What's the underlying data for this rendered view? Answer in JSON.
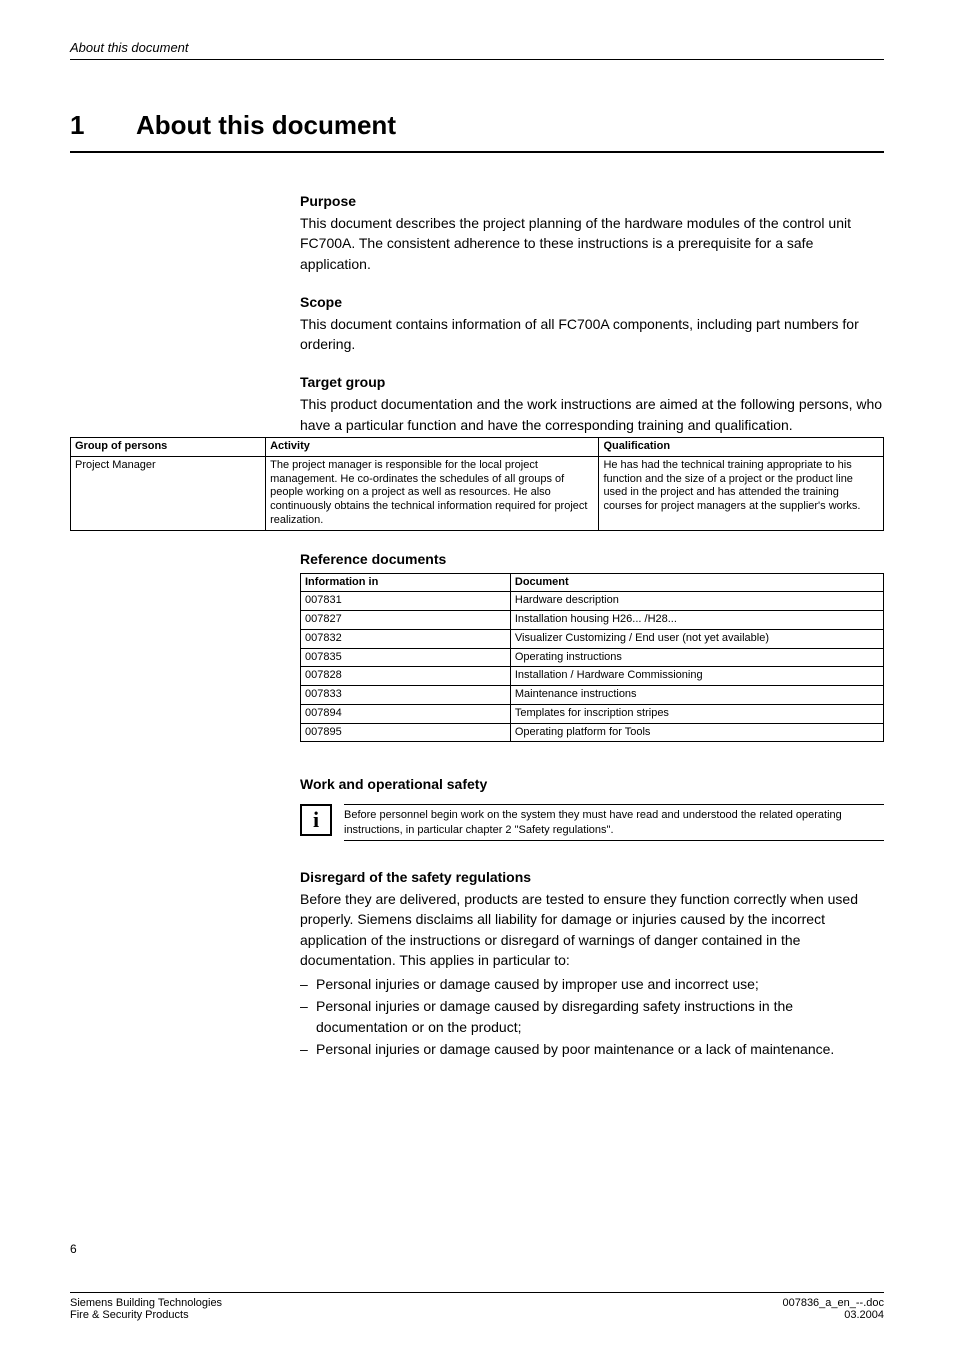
{
  "running_head": "About this document",
  "chapter": {
    "num": "1",
    "title": "About this document"
  },
  "sections": {
    "purpose": {
      "head": "Purpose",
      "body": "This document describes the project planning of the hardware modules of the control unit FC700A. The consistent adherence to these instructions is a prerequisite for a safe application."
    },
    "scope": {
      "head": "Scope",
      "body": "This document contains information of all FC700A components, including part numbers for ordering."
    },
    "target": {
      "head": "Target group",
      "body": "This product documentation and the work instructions are aimed at the following persons, who have a particular function and have the corresponding training and qualification."
    },
    "refdocs_head": "Reference documents",
    "work_safety_head": "Work and operational safety",
    "info_note": "Before personnel begin work on the system they must have read and understood the related operating instructions, in particular chapter 2  \"Safety regulations\".",
    "disregard": {
      "head": "Disregard of the safety regulations",
      "body": "Before they are delivered, products are tested to ensure they function correctly when used properly. Siemens disclaims all liability for damage or injuries caused by the incorrect application of the instructions or disregard of warnings of danger contained in the documentation. This applies in particular to:",
      "bullets": [
        "Personal injuries or damage caused by improper use and incorrect use;",
        "Personal injuries or damage caused by disregarding safety instructions in the documentation or on the product;",
        "Personal injuries or damage caused by poor maintenance or a lack of maintenance."
      ]
    }
  },
  "persons_table": {
    "headers": [
      "Group of persons",
      "Activity",
      "Qualification"
    ],
    "row": {
      "group": "Project Manager",
      "activity": "The project manager is responsible for the local project management. He co-ordinates the schedules of all groups of people working on a project as well as resources. He also continuously obtains the technical information required for project realization.",
      "qualification": "He has had the technical training appropriate to his function and the size of a project or the product line used in the project and has attended the training courses for project managers at the supplier's works."
    },
    "col_widths": [
      "24%",
      "41%",
      "35%"
    ]
  },
  "ref_table": {
    "headers": [
      "Information in",
      "Document"
    ],
    "rows": [
      [
        "007831",
        "Hardware description"
      ],
      [
        "007827",
        "Installation housing H26... /H28..."
      ],
      [
        "007832",
        "Visualizer Customizing / End user (not yet available)"
      ],
      [
        "007835",
        "Operating instructions"
      ],
      [
        "007828",
        "Installation / Hardware Commissioning"
      ],
      [
        "007833",
        "Maintenance instructions"
      ],
      [
        "007894",
        "Templates for inscription stripes"
      ],
      [
        "007895",
        "Operating platform for Tools"
      ]
    ],
    "col_widths": [
      "36%",
      "64%"
    ]
  },
  "info_icon_glyph": "i",
  "footer": {
    "page_num": "6",
    "left1": "Siemens Building Technologies",
    "left2": "Fire & Security Products",
    "right1": "007836_a_en_--.doc",
    "right2": "03.2004"
  }
}
